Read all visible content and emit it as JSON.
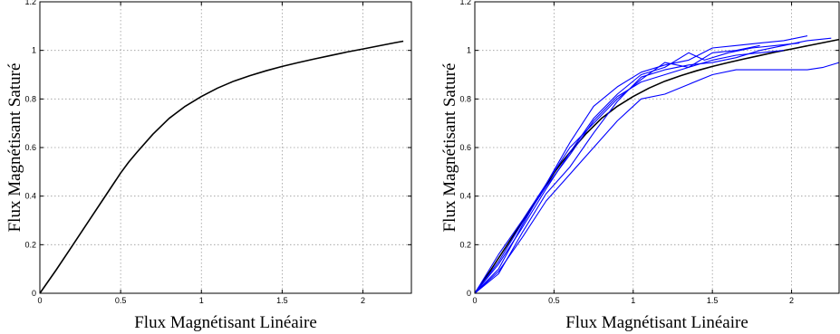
{
  "chart_data": [
    {
      "type": "line",
      "xlabel": "Flux Magnétisant Linéaire",
      "ylabel": "Flux Magnétisant Saturé",
      "xlim": [
        0,
        2.3
      ],
      "ylim": [
        0,
        1.2
      ],
      "xticks": [
        0,
        0.5,
        1,
        1.5,
        2
      ],
      "xtick_labels": [
        "0",
        "0.5",
        "1",
        "1.5",
        "2"
      ],
      "yticks": [
        0,
        0.2,
        0.4,
        0.6,
        0.8,
        1,
        1.2
      ],
      "ytick_labels": [
        "0",
        "0.2",
        "0.4",
        "0.6",
        "0.8",
        "1",
        "1.2"
      ],
      "grid": true,
      "series": [
        {
          "color": "#000000",
          "x": [
            0,
            0.1,
            0.2,
            0.3,
            0.4,
            0.5,
            0.55,
            0.6,
            0.7,
            0.8,
            0.9,
            1.0,
            1.1,
            1.2,
            1.3,
            1.4,
            1.5,
            1.6,
            1.7,
            1.8,
            1.9,
            2.0,
            2.1,
            2.2,
            2.25
          ],
          "y": [
            0,
            0.095,
            0.195,
            0.295,
            0.395,
            0.495,
            0.54,
            0.58,
            0.655,
            0.72,
            0.77,
            0.81,
            0.845,
            0.873,
            0.896,
            0.916,
            0.934,
            0.95,
            0.965,
            0.979,
            0.993,
            1.006,
            1.019,
            1.032,
            1.038
          ]
        }
      ]
    },
    {
      "type": "line",
      "xlabel": "Flux Magnétisant Linéaire",
      "ylabel": "Flux Magnétisant Saturé",
      "xlim": [
        0,
        2.3
      ],
      "ylim": [
        0,
        1.2
      ],
      "xticks": [
        0,
        0.5,
        1,
        1.5,
        2
      ],
      "xtick_labels": [
        "0",
        "0.5",
        "1",
        "1.5",
        "2"
      ],
      "yticks": [
        0,
        0.2,
        0.4,
        0.6,
        0.8,
        1,
        1.2
      ],
      "ytick_labels": [
        "0",
        "0.2",
        "0.4",
        "0.6",
        "0.8",
        "1",
        "1.2"
      ],
      "grid": true,
      "series": [
        {
          "color": "#000000",
          "x": [
            0,
            0.1,
            0.2,
            0.3,
            0.4,
            0.5,
            0.55,
            0.6,
            0.7,
            0.8,
            0.9,
            1.0,
            1.1,
            1.2,
            1.3,
            1.4,
            1.5,
            1.6,
            1.7,
            1.8,
            1.9,
            2.0,
            2.1,
            2.2,
            2.3
          ],
          "y": [
            0,
            0.095,
            0.195,
            0.295,
            0.395,
            0.495,
            0.54,
            0.58,
            0.655,
            0.72,
            0.77,
            0.81,
            0.845,
            0.873,
            0.896,
            0.916,
            0.934,
            0.95,
            0.965,
            0.979,
            0.993,
            1.006,
            1.019,
            1.032,
            1.045
          ]
        },
        {
          "color": "#0000ff",
          "x": [
            0,
            0.15,
            0.3,
            0.45,
            0.6,
            0.75,
            0.9,
            1.05,
            1.2,
            1.35,
            1.5,
            1.65,
            1.8,
            1.95,
            2.1,
            2.25
          ],
          "y": [
            0,
            0.08,
            0.25,
            0.41,
            0.52,
            0.66,
            0.79,
            0.89,
            0.92,
            0.94,
            0.95,
            0.97,
            1.0,
            1.02,
            1.04,
            1.05
          ]
        },
        {
          "color": "#0000ff",
          "x": [
            0,
            0.15,
            0.3,
            0.45,
            0.6,
            0.75,
            0.9,
            1.05,
            1.2,
            1.35,
            1.5,
            1.65,
            1.8
          ],
          "y": [
            0,
            0.16,
            0.3,
            0.45,
            0.6,
            0.7,
            0.8,
            0.88,
            0.95,
            0.93,
            0.99,
            1.0,
            1.02
          ]
        },
        {
          "color": "#0000ff",
          "x": [
            0,
            0.15,
            0.3,
            0.45,
            0.6,
            0.75,
            0.9,
            1.05,
            1.2,
            1.35,
            1.45,
            1.6,
            1.75,
            1.9,
            2.05
          ],
          "y": [
            0,
            0.12,
            0.27,
            0.43,
            0.58,
            0.72,
            0.82,
            0.9,
            0.93,
            0.99,
            0.96,
            0.99,
            1.01,
            1.02,
            1.03
          ]
        },
        {
          "color": "#0000ff",
          "x": [
            0,
            0.15,
            0.3,
            0.45,
            0.6,
            0.75,
            0.9,
            1.05,
            1.2,
            1.35,
            1.5,
            1.65,
            1.8,
            1.95,
            2.1
          ],
          "y": [
            0,
            0.1,
            0.28,
            0.45,
            0.62,
            0.77,
            0.85,
            0.91,
            0.94,
            0.96,
            1.01,
            1.02,
            1.03,
            1.04,
            1.06
          ]
        },
        {
          "color": "#0000ff",
          "x": [
            0,
            0.15,
            0.3,
            0.45,
            0.6,
            0.75,
            0.9,
            1.05,
            1.2,
            1.35,
            1.5,
            1.65,
            1.8,
            1.95
          ],
          "y": [
            0,
            0.13,
            0.29,
            0.44,
            0.57,
            0.71,
            0.81,
            0.87,
            0.9,
            0.93,
            0.96,
            0.98,
            0.99,
            1.0
          ]
        },
        {
          "color": "#0000ff",
          "x": [
            0,
            0.15,
            0.3,
            0.45,
            0.6,
            0.75,
            0.9,
            1.05,
            1.2,
            1.35,
            1.5,
            1.65,
            1.8,
            1.95,
            2.1,
            2.2,
            2.3
          ],
          "y": [
            0,
            0.09,
            0.23,
            0.38,
            0.49,
            0.6,
            0.71,
            0.8,
            0.82,
            0.86,
            0.9,
            0.92,
            0.92,
            0.92,
            0.92,
            0.93,
            0.95
          ]
        }
      ]
    }
  ]
}
